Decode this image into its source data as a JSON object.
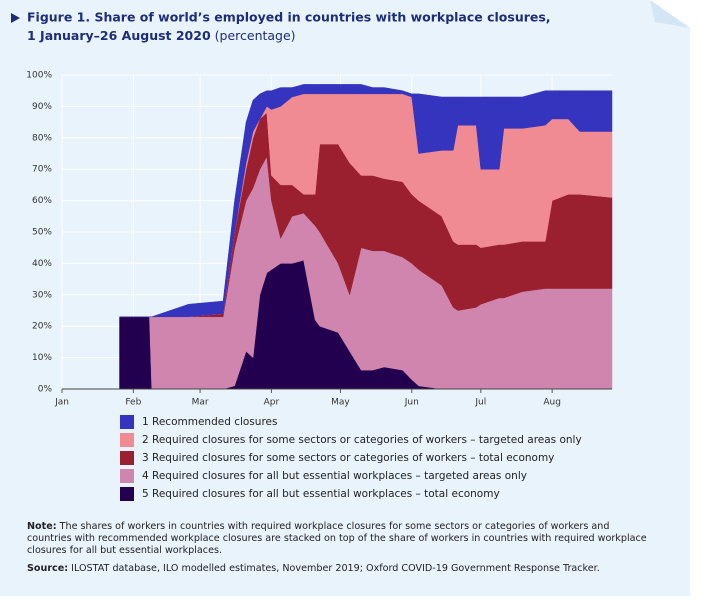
{
  "chart_data": {
    "type": "stacked_area",
    "title": [
      "Figure 1.  Share of world’s employed in countries with workplace closures,",
      "1 January–26 August 2020"
    ],
    "subtitle": "(percentage)",
    "x": [
      25,
      38,
      39,
      55,
      70,
      75,
      80,
      83,
      86,
      89,
      91,
      95,
      100,
      105,
      110,
      112,
      120,
      125,
      130,
      135,
      140,
      148,
      152,
      155,
      165,
      170,
      172,
      180,
      182,
      190,
      192,
      200,
      210,
      213,
      220,
      225,
      239
    ],
    "xlim": [
      0,
      239
    ],
    "xticks": [
      {
        "value": 0,
        "label": "Jan"
      },
      {
        "value": 31,
        "label": "Feb"
      },
      {
        "value": 60,
        "label": "Mar"
      },
      {
        "value": 91,
        "label": "Apr"
      },
      {
        "value": 121,
        "label": "May"
      },
      {
        "value": 152,
        "label": "Jun"
      },
      {
        "value": 182,
        "label": "Jul"
      },
      {
        "value": 213,
        "label": "Aug"
      }
    ],
    "ylim": [
      0,
      100
    ],
    "yticks": [
      {
        "value": 0,
        "label": "0%"
      },
      {
        "value": 10,
        "label": "10%"
      },
      {
        "value": 20,
        "label": "20%"
      },
      {
        "value": 30,
        "label": "30%"
      },
      {
        "value": 40,
        "label": "40%"
      },
      {
        "value": 50,
        "label": "50%"
      },
      {
        "value": 60,
        "label": "60%"
      },
      {
        "value": 70,
        "label": "70%"
      },
      {
        "value": 80,
        "label": "80%"
      },
      {
        "value": 90,
        "label": "90%"
      },
      {
        "value": 100,
        "label": "100%"
      }
    ],
    "grid": true,
    "series": [
      {
        "name": "1 Recommended closures",
        "color": "#3434bf",
        "values": [
          0,
          0,
          0,
          4,
          4,
          10,
          13,
          10,
          8,
          5,
          6,
          6,
          3,
          3,
          3,
          3,
          3,
          3,
          3,
          2,
          2,
          1,
          1,
          19,
          17,
          17,
          9,
          9,
          23,
          23,
          10,
          10,
          11,
          9,
          9,
          13,
          13
        ]
      },
      {
        "name": "2 Required closures for some sectors or categories of workers – targeted areas only",
        "color": "#f08a93",
        "values": [
          0,
          0,
          0,
          0,
          0,
          0,
          2,
          2,
          0,
          2,
          21,
          25,
          28,
          32,
          32,
          16,
          16,
          22,
          26,
          26,
          27,
          28,
          31,
          15,
          21,
          29,
          38,
          38,
          25,
          24,
          37,
          36,
          37,
          26,
          24,
          20,
          21
        ]
      },
      {
        "name": "3 Required closures for some sectors or categories of workers – total economy",
        "color": "#9a2030",
        "values": [
          0,
          0,
          0,
          0,
          1,
          5,
          10,
          16,
          16,
          14,
          8,
          17,
          10,
          6,
          10,
          28,
          38,
          42,
          23,
          24,
          23,
          24,
          22,
          22,
          22,
          21,
          21,
          20,
          18,
          17,
          17,
          16,
          15,
          28,
          30,
          30,
          29
        ]
      },
      {
        "name": "4 Required closures for all but essential workplaces – targeted areas only",
        "color": "#cf85ad",
        "values": [
          0,
          0,
          23,
          23,
          23,
          44,
          48,
          54,
          40,
          37,
          22,
          8,
          15,
          15,
          30,
          30,
          22,
          18,
          39,
          38,
          37,
          36,
          37,
          37,
          33,
          26,
          25,
          26,
          27,
          29,
          29,
          31,
          32,
          32,
          32,
          32,
          32
        ]
      },
      {
        "name": "5 Required closures for all but essential workplaces – total economy",
        "color": "#23004f",
        "values": [
          23,
          23,
          0,
          0,
          0,
          1,
          12,
          10,
          30,
          37,
          38,
          40,
          40,
          41,
          22,
          20,
          18,
          12,
          6,
          6,
          7,
          6,
          3,
          1,
          0,
          0,
          0,
          0,
          0,
          0,
          0,
          0,
          0,
          0,
          0,
          0,
          0
        ]
      }
    ]
  },
  "note": {
    "label": "Note:",
    "text": "The shares of workers in countries with required workplace closures for some sectors or categories of workers and countries with recommended workplace closures are stacked on top of the share of workers in countries with required workplace closures for all but essential workplaces."
  },
  "source": {
    "label": "Source:",
    "text": "ILOSTAT database, ILO modelled estimates, November 2019; Oxford COVID-19 Government Response Tracker."
  }
}
